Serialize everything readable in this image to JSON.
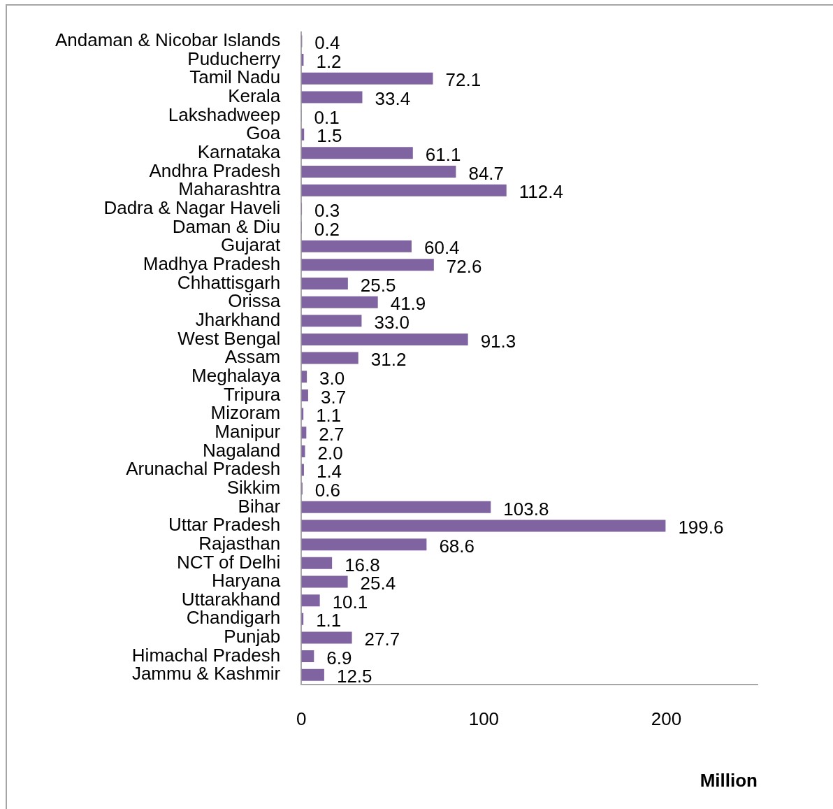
{
  "chart_data": {
    "type": "bar",
    "orientation": "horizontal",
    "xlabel": "Million",
    "categories": [
      "Andaman & Nicobar Islands",
      "Puducherry",
      "Tamil Nadu",
      "Kerala",
      "Lakshadweep",
      "Goa",
      "Karnataka",
      "Andhra Pradesh",
      "Maharashtra",
      "Dadra & Nagar Haveli",
      "Daman & Diu",
      "Gujarat",
      "Madhya Pradesh",
      "Chhattisgarh",
      "Orissa",
      "Jharkhand",
      "West Bengal",
      "Assam",
      "Meghalaya",
      "Tripura",
      "Mizoram",
      "Manipur",
      "Nagaland",
      "Arunachal Pradesh",
      "Sikkim",
      "Bihar",
      "Uttar Pradesh",
      "Rajasthan",
      "NCT of Delhi",
      "Haryana",
      "Uttarakhand",
      "Chandigarh",
      "Punjab",
      "Himachal Pradesh",
      "Jammu & Kashmir"
    ],
    "values": [
      0.4,
      1.2,
      72.1,
      33.4,
      0.1,
      1.5,
      61.1,
      84.7,
      112.4,
      0.3,
      0.2,
      60.4,
      72.6,
      25.5,
      41.9,
      33.0,
      91.3,
      31.2,
      3.0,
      3.7,
      1.1,
      2.7,
      2.0,
      1.4,
      0.6,
      103.8,
      199.6,
      68.6,
      16.8,
      25.4,
      10.1,
      1.1,
      27.7,
      6.9,
      12.5
    ],
    "value_labels": [
      "0.4",
      "1.2",
      "72.1",
      "33.4",
      "0.1",
      "1.5",
      "61.1",
      "84.7",
      "112.4",
      "0.3",
      "0.2",
      "60.4",
      "72.6",
      "25.5",
      "41.9",
      "33.0",
      "91.3",
      "31.2",
      "3.0",
      "3.7",
      "1.1",
      "2.7",
      "2.0",
      "1.4",
      "0.6",
      "103.8",
      "199.6",
      "68.6",
      "16.8",
      "25.4",
      "10.1",
      "1.1",
      "27.7",
      "6.9",
      "12.5"
    ],
    "color": "#8064a2",
    "xlim": [
      0,
      250
    ],
    "xticks": [
      0,
      100,
      200
    ],
    "grid": false,
    "legend": false
  }
}
